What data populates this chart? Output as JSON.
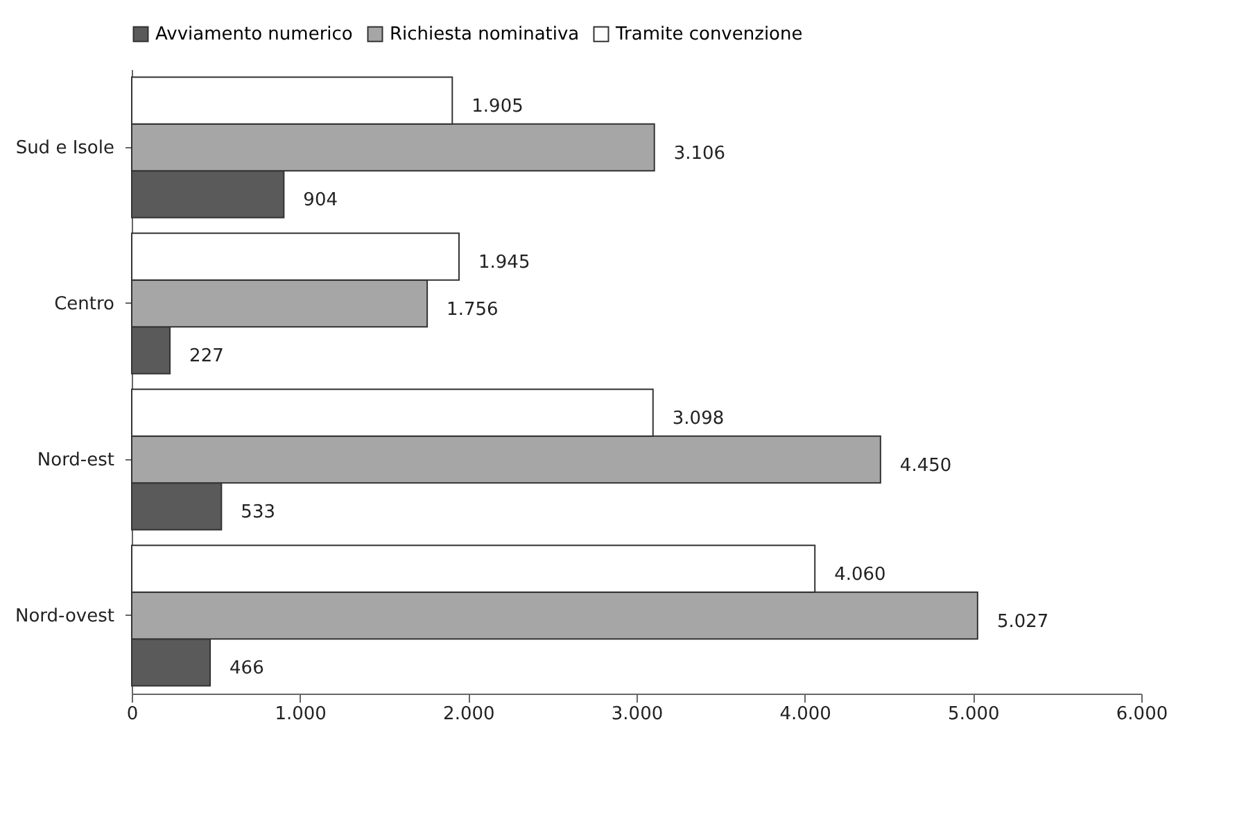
{
  "chart_data": {
    "type": "bar",
    "orientation": "horizontal",
    "categories": [
      "Sud e Isole",
      "Centro",
      "Nord-est",
      "Nord-ovest"
    ],
    "series": [
      {
        "name": "Avviamento numerico",
        "color": "#5a5a5a",
        "values": [
          904,
          227,
          533,
          466
        ],
        "value_labels": [
          "904",
          "227",
          "533",
          "466"
        ]
      },
      {
        "name": "Richiesta nominativa",
        "color": "#a6a6a6",
        "values": [
          3106,
          1756,
          4450,
          5027
        ],
        "value_labels": [
          "3.106",
          "1.756",
          "4.450",
          "5.027"
        ]
      },
      {
        "name": "Tramite convenzione",
        "color": "#ffffff",
        "values": [
          1905,
          1945,
          3098,
          4060
        ],
        "value_labels": [
          "1.905",
          "1.945",
          "3.098",
          "4.060"
        ]
      }
    ],
    "xlim": [
      0,
      6000
    ],
    "xticks": [
      0,
      {
        "value": 1000,
        "label": "1.000"
      },
      {
        "value": 2000,
        "label": "2.000"
      },
      {
        "value": 3000,
        "label": "3.000"
      },
      {
        "value": 4000,
        "label": "4.000"
      },
      {
        "value": 5000,
        "label": "5.000"
      },
      {
        "value": 6000,
        "label": "6.000"
      }
    ],
    "legend": "top",
    "grid": false
  }
}
